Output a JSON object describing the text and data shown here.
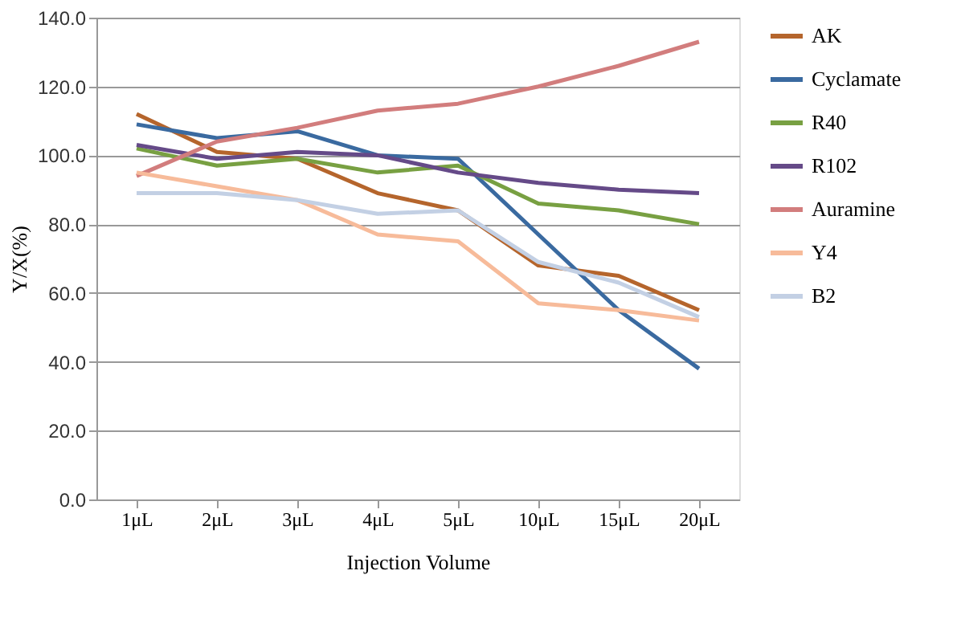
{
  "chart_data": {
    "type": "line",
    "xlabel": "Injection Volume",
    "ylabel": "Y/X(%)",
    "categories": [
      "1μL",
      "2μL",
      "3μL",
      "4μL",
      "5μL",
      "10μL",
      "15μL",
      "20μL"
    ],
    "series": [
      {
        "name": "AK",
        "color": "#b5652c",
        "values": [
          112,
          101,
          99,
          89,
          84,
          68,
          65,
          55
        ]
      },
      {
        "name": "Cyclamate",
        "color": "#3a6aa0",
        "values": [
          109,
          105,
          107,
          100,
          99,
          77,
          55,
          38
        ]
      },
      {
        "name": "R40",
        "color": "#78a042",
        "values": [
          102,
          97,
          99,
          95,
          97,
          86,
          84,
          80
        ]
      },
      {
        "name": "R102",
        "color": "#654a88",
        "values": [
          103,
          99,
          101,
          100,
          95,
          92,
          90,
          89
        ]
      },
      {
        "name": "Auramine",
        "color": "#d27d7d",
        "values": [
          94,
          104,
          108,
          113,
          115,
          120,
          126,
          133
        ]
      },
      {
        "name": "Y4",
        "color": "#f7bb9a",
        "values": [
          95,
          91,
          87,
          77,
          75,
          57,
          55,
          52
        ]
      },
      {
        "name": "B2",
        "color": "#c3d0e4",
        "values": [
          89,
          89,
          87,
          83,
          84,
          69,
          63,
          53
        ]
      }
    ],
    "ylim": [
      0,
      140
    ],
    "yticks": [
      {
        "value": 0,
        "label": "0.0"
      },
      {
        "value": 20,
        "label": "20.0"
      },
      {
        "value": 40,
        "label": "40.0"
      },
      {
        "value": 60,
        "label": "60.0"
      },
      {
        "value": 80,
        "label": "80.0"
      },
      {
        "value": 100,
        "label": "100.0"
      },
      {
        "value": 120,
        "label": "120.0"
      },
      {
        "value": 140,
        "label": "140.0"
      }
    ],
    "grid": "y",
    "legend": "right",
    "marker": "none",
    "line_style": "solid"
  }
}
